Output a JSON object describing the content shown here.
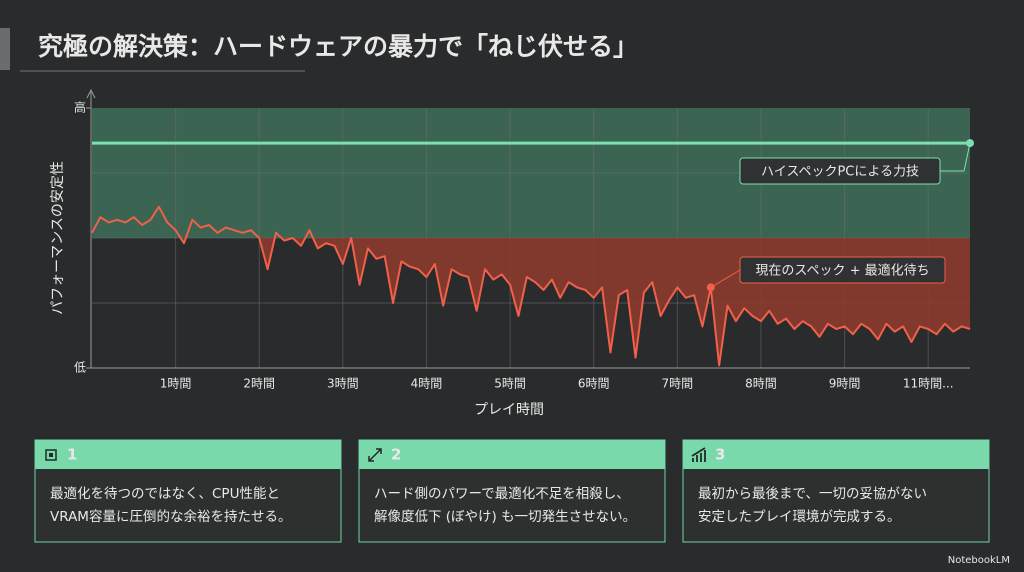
{
  "header": {
    "title": "究極の解決策：ハードウェアの暴力で「ねじ伏せる」"
  },
  "chart_data": {
    "type": "line",
    "y_label": "パフォーマンスの安定性",
    "x_label": "プレイ時間",
    "xlim": [
      0,
      10.5
    ],
    "ylim": [
      0,
      100
    ],
    "xticks": [
      {
        "value": 1,
        "label": "1時間"
      },
      {
        "value": 2,
        "label": "2時間"
      },
      {
        "value": 3,
        "label": "3時間"
      },
      {
        "value": 4,
        "label": "4時間"
      },
      {
        "value": 5,
        "label": "5時間"
      },
      {
        "value": 6,
        "label": "6時間"
      },
      {
        "value": 7,
        "label": "7時間"
      },
      {
        "value": 8,
        "label": "8時間"
      },
      {
        "value": 9,
        "label": "9時間"
      },
      {
        "value": 10,
        "label": "11時間..."
      }
    ],
    "yticks": [
      {
        "value": 0,
        "label": "低"
      },
      {
        "value": 100,
        "label": "高"
      }
    ],
    "ygrid": [
      25,
      50,
      75
    ],
    "threshold": 50,
    "upper_zone_color": "#3f6e5a",
    "lower_zone_color": "#8c3b2e",
    "grid": true,
    "series": [
      {
        "name": "ハイスペックPCによる力技",
        "color": "#7ee0b0",
        "x": [
          0,
          10.5
        ],
        "values": [
          86.5,
          86.5
        ],
        "callout_at": 1
      },
      {
        "name": "現在のスペック + 最適化待ち",
        "color": "#f0604a",
        "callout_at": 74,
        "x": [
          0,
          0.1,
          0.2,
          0.3,
          0.4,
          0.5,
          0.6,
          0.7,
          0.8,
          0.9,
          1,
          1.1,
          1.2,
          1.3,
          1.4,
          1.5,
          1.6,
          1.7,
          1.8,
          1.9,
          2,
          2.1,
          2.2,
          2.3,
          2.4,
          2.5,
          2.6,
          2.7,
          2.8,
          2.9,
          3,
          3.1,
          3.2,
          3.3,
          3.4,
          3.5,
          3.6,
          3.7,
          3.8,
          3.9,
          4,
          4.1,
          4.2,
          4.3,
          4.4,
          4.5,
          4.6,
          4.7,
          4.8,
          4.9,
          5,
          5.1,
          5.2,
          5.3,
          5.4,
          5.5,
          5.6,
          5.7,
          5.8,
          5.9,
          6,
          6.1,
          6.2,
          6.3,
          6.4,
          6.5,
          6.6,
          6.7,
          6.8,
          6.9,
          7,
          7.1,
          7.2,
          7.3,
          7.4,
          7.5,
          7.6,
          7.7,
          7.8,
          7.9,
          8,
          8.1,
          8.2,
          8.3,
          8.4,
          8.5,
          8.6,
          8.7,
          8.8,
          8.9,
          9,
          9.1,
          9.2,
          9.3,
          9.4,
          9.5,
          9.6,
          9.7,
          9.8,
          9.9,
          10,
          10.1,
          10.2,
          10.3,
          10.4,
          10.5
        ],
        "values": [
          52,
          58,
          56,
          57,
          56,
          58,
          55,
          57,
          62,
          56,
          53,
          48,
          57,
          54,
          55,
          52,
          54,
          53,
          52,
          53,
          50,
          38,
          52,
          49,
          50,
          47,
          53,
          46,
          48,
          47,
          40,
          50,
          32,
          46,
          42,
          43,
          25,
          41,
          39,
          38,
          35,
          40,
          24,
          38,
          36,
          35,
          22,
          38,
          34,
          36,
          32,
          20,
          35,
          33,
          30,
          34,
          27,
          33,
          31,
          30,
          27,
          31,
          6,
          28,
          30,
          4,
          29,
          33,
          20,
          26,
          31,
          27,
          28,
          16,
          31,
          1,
          24,
          18,
          23,
          20,
          18,
          22,
          17,
          19,
          15,
          18,
          16,
          12,
          17,
          15,
          16,
          13,
          17,
          15,
          11,
          17,
          14,
          16,
          10,
          16,
          15,
          13,
          17,
          14,
          16,
          15
        ]
      }
    ]
  },
  "cards": [
    {
      "number": "1",
      "lines": [
        "最適化を待つのではなく、CPU性能と",
        "VRAM容量に圧倒的な余裕を持たせる。"
      ]
    },
    {
      "number": "2",
      "lines": [
        "ハード側のパワーで最適化不足を相殺し、",
        "解像度低下 (ぼやけ) も一切発生させない。"
      ]
    },
    {
      "number": "3",
      "lines": [
        "最初から最後まで、一切の妥協がない",
        "安定したプレイ環境が完成する。"
      ]
    }
  ],
  "footer": {
    "brand": "NotebookLM"
  }
}
